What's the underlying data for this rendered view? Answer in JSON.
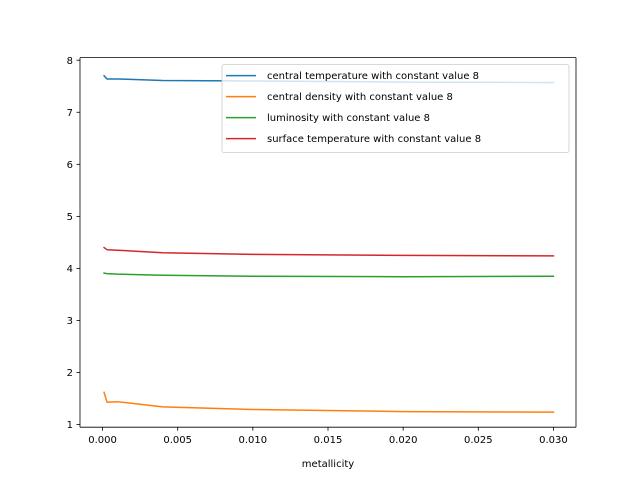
{
  "chart_data": {
    "type": "line",
    "title": "",
    "xlabel": "metallicity",
    "ylabel": "",
    "xlim": [
      -0.0015,
      0.0315
    ],
    "ylim": [
      0.95,
      8.05
    ],
    "xticks": [
      0.0,
      0.005,
      0.01,
      0.015,
      0.02,
      0.025,
      0.03
    ],
    "xtick_labels": [
      "0.000",
      "0.005",
      "0.010",
      "0.015",
      "0.020",
      "0.025",
      "0.030"
    ],
    "yticks": [
      1,
      2,
      3,
      4,
      5,
      6,
      7,
      8
    ],
    "ytick_labels": [
      "1",
      "2",
      "3",
      "4",
      "5",
      "6",
      "7",
      "8"
    ],
    "grid": false,
    "legend_position": "top-right",
    "series": [
      {
        "name": "central temperature with constant value 8",
        "color": "#1f77b4",
        "x": [
          0.0001,
          0.0003,
          0.001,
          0.004,
          0.01,
          0.02,
          0.03
        ],
        "y": [
          7.7,
          7.64,
          7.64,
          7.61,
          7.6,
          7.58,
          7.57
        ]
      },
      {
        "name": "central density with constant value 8",
        "color": "#ff7f0e",
        "x": [
          0.0001,
          0.0003,
          0.001,
          0.004,
          0.01,
          0.02,
          0.03
        ],
        "y": [
          1.62,
          1.43,
          1.44,
          1.34,
          1.29,
          1.25,
          1.24
        ]
      },
      {
        "name": "luminosity with constant value 8",
        "color": "#2ca02c",
        "x": [
          0.0001,
          0.0003,
          0.001,
          0.004,
          0.01,
          0.02,
          0.03
        ],
        "y": [
          3.91,
          3.9,
          3.89,
          3.87,
          3.85,
          3.84,
          3.85
        ]
      },
      {
        "name": "surface temperature with constant value 8",
        "color": "#d62728",
        "x": [
          0.0001,
          0.0003,
          0.001,
          0.004,
          0.01,
          0.02,
          0.03
        ],
        "y": [
          4.4,
          4.36,
          4.35,
          4.3,
          4.27,
          4.25,
          4.24
        ]
      }
    ]
  }
}
